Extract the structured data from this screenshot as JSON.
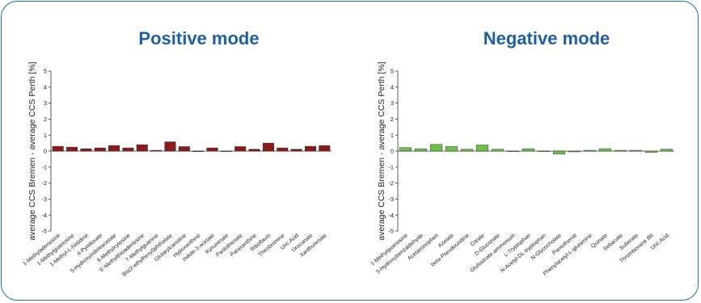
{
  "chart_data": [
    {
      "type": "bar",
      "title": "Positive mode",
      "ylabel": "average CCS Bremen - average CCS Perth [%]",
      "xlabel": "",
      "ylim": [
        -5,
        5
      ],
      "yticks": [
        5,
        4,
        3,
        2,
        1,
        0,
        -1,
        -2,
        -3,
        -4,
        -5
      ],
      "grid": false,
      "color": "#8b1a1a",
      "categories": [
        "1-Methyladenosine",
        "1-Methylguanosine",
        "1-Methyl-L-histidine",
        "4-Pyridoxate",
        "5-Hydroxyindoleacetate",
        "5-Methylcytosine",
        "5'-Methylthioadenosine",
        "7-Methylguanine",
        "Bis(2-ethylhexyl)phthalate",
        "Glutarylcarnitine",
        "Hypoxanthine",
        "Indole-3-acetate",
        "Kynurenate",
        "Pantothenate",
        "Paraxanthine",
        "Riboflavin",
        "Theobromine",
        "Uric Acid",
        "Urocanate",
        "Xanthurenate"
      ],
      "values": [
        0.3,
        0.25,
        0.15,
        0.2,
        0.35,
        0.2,
        0.4,
        0.05,
        0.58,
        0.28,
        0.0,
        0.2,
        0.0,
        0.28,
        0.12,
        0.5,
        0.2,
        0.12,
        0.3,
        0.35
      ]
    },
    {
      "type": "bar",
      "title": "Negative mode",
      "ylabel": "average CCS Bremen - average CCS Perth [%]",
      "xlabel": "",
      "ylim": [
        -5,
        5
      ],
      "yticks": [
        5,
        4,
        3,
        2,
        1,
        0,
        -1,
        -2,
        -3,
        -4,
        -5
      ],
      "grid": false,
      "color": "#6cc04a",
      "categories": [
        "1-Methylguanosine",
        "3-Hydroxybenzaldehyde",
        "Acetaminophen",
        "Azelate",
        "beta-Pseudouridine",
        "Citrate",
        "D-Gluconate",
        "Glufosinate-ammonium",
        "L-Tryptophan",
        "N-Acetyl-DL-tryptophan",
        "N-Glycocholate",
        "Pantothenat",
        "Phenylacetyl-L-glutamine",
        "Quinate",
        "Sebacate",
        "Suberate",
        "Thromboxane B6",
        "Uric Acid"
      ],
      "values": [
        0.22,
        0.15,
        0.42,
        0.28,
        0.12,
        0.38,
        0.12,
        0.0,
        0.15,
        0.0,
        -0.18,
        -0.05,
        0.05,
        0.15,
        0.05,
        0.05,
        -0.08,
        0.12
      ]
    }
  ]
}
